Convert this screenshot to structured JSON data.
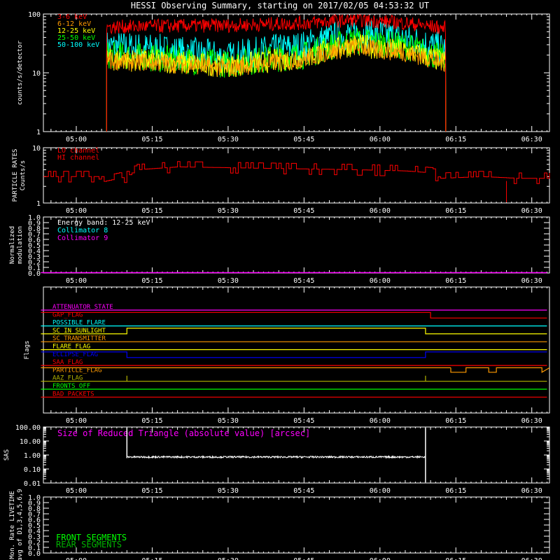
{
  "title": "HESSI Observing Summary, starting on 2017/02/05 04:53:32 UT",
  "colors": {
    "background": "#000000",
    "axes": "#ffffff",
    "red": "#ff0000",
    "orange": "#ff9900",
    "yellow": "#ffff00",
    "green": "#00ff00",
    "cyan": "#00ffff",
    "magenta": "#ff00ff",
    "blue": "#0000ff",
    "olive": "#b3b300",
    "darkgreen": "#00b400",
    "white": "#ffffff"
  },
  "time_axis": {
    "ticks": [
      "05:00",
      "05:15",
      "05:30",
      "05:45",
      "06:00",
      "06:15",
      "06:30"
    ]
  },
  "chart_data": [
    {
      "id": "lightcurve",
      "type": "line",
      "ylabel": "counts/s/detector",
      "yscale": "log",
      "ylim": [
        1,
        100
      ],
      "ytick_labels": [
        "1",
        "10",
        "100"
      ],
      "data_window": [
        "05:06",
        "06:13"
      ],
      "series": [
        {
          "name": "3-6 keV",
          "color": "#ff0000",
          "x": [
            "05:06",
            "05:15",
            "05:30",
            "05:45",
            "05:55",
            "06:00",
            "06:05",
            "06:12"
          ],
          "y": [
            60,
            62,
            64,
            70,
            80,
            75,
            70,
            58
          ]
        },
        {
          "name": "6-12 keV",
          "color": "#ff9900",
          "x": [
            "05:06",
            "05:15",
            "05:30",
            "05:45",
            "05:55",
            "06:00",
            "06:05",
            "06:12"
          ],
          "y": [
            16,
            15,
            12,
            17,
            28,
            24,
            22,
            15
          ]
        },
        {
          "name": "12-25 keV",
          "color": "#ffff00",
          "x": [
            "05:06",
            "05:15",
            "05:30",
            "05:45",
            "05:55",
            "06:00",
            "06:05",
            "06:12"
          ],
          "y": [
            17,
            16,
            13,
            18,
            30,
            26,
            23,
            16
          ]
        },
        {
          "name": "25-50 keV",
          "color": "#00ff00",
          "x": [
            "05:06",
            "05:15",
            "05:30",
            "05:45",
            "05:55",
            "06:00",
            "06:05",
            "06:12"
          ],
          "y": [
            20,
            18,
            14,
            20,
            35,
            32,
            28,
            18
          ]
        },
        {
          "name": "50-100 keV",
          "color": "#00ffff",
          "x": [
            "05:06",
            "05:15",
            "05:30",
            "05:45",
            "05:55",
            "06:00",
            "06:05",
            "06:12"
          ],
          "y": [
            28,
            25,
            18,
            28,
            48,
            44,
            38,
            26
          ]
        }
      ]
    },
    {
      "id": "particle",
      "type": "line",
      "ylabel_lines": [
        "PARTICLE RATES",
        "Counts/s"
      ],
      "yscale": "log",
      "ylim": [
        1,
        10
      ],
      "ytick_labels": [
        "1",
        "10"
      ],
      "series": [
        {
          "name": "LO channel",
          "color": "#ff0000",
          "x": [
            "04:53",
            "05:04",
            "05:05",
            "05:10",
            "05:12",
            "05:20",
            "05:40",
            "05:55",
            "06:05",
            "06:10",
            "06:12",
            "06:20",
            "06:27",
            "06:33"
          ],
          "y": [
            3.0,
            3.0,
            2.4,
            3.0,
            4.0,
            4.5,
            4.2,
            4.0,
            3.8,
            3.5,
            2.8,
            3.0,
            2.8,
            2.8
          ]
        },
        {
          "name": "HI channel",
          "color": "#ff0000",
          "x": [],
          "y": []
        }
      ]
    },
    {
      "id": "modulation",
      "type": "line",
      "ylabel_lines": [
        "Normalized",
        "modulation"
      ],
      "ylim": [
        0,
        1
      ],
      "ytick_labels": [
        "0.0",
        "0.1",
        "0.2",
        "0.3",
        "0.4",
        "0.5",
        "0.6",
        "0.7",
        "0.8",
        "0.9",
        "1.0"
      ],
      "annotation": "Energy band: 12-25 keV",
      "series": [
        {
          "name": "Collimator 8",
          "color": "#00ffff",
          "x": [],
          "y": []
        },
        {
          "name": "Collimator 9",
          "color": "#ff00ff",
          "x": [
            "04:53",
            "06:33"
          ],
          "y": [
            0.0,
            0.0
          ]
        }
      ]
    },
    {
      "id": "flags",
      "type": "line",
      "ylabel": "Flags",
      "series": [
        {
          "name": "ATTENUATOR_STATE",
          "color": "#ff00ff",
          "x": [
            "04:53",
            "06:33"
          ],
          "y": [
            0,
            0
          ]
        },
        {
          "name": "GAP_FLAG",
          "color": "#ff0000",
          "x": [
            "04:53",
            "06:10",
            "06:10",
            "06:33"
          ],
          "y": [
            1,
            1,
            0,
            0
          ]
        },
        {
          "name": "POSSIBLE_FLARE",
          "color": "#00ffff",
          "x": [
            "04:53",
            "06:33"
          ],
          "y": [
            0,
            0
          ]
        },
        {
          "name": "SC_IN_SUNLIGHT",
          "color": "#ffff00",
          "x": [
            "04:53",
            "05:10",
            "05:10",
            "06:09",
            "06:09",
            "06:33"
          ],
          "y": [
            0,
            0,
            1,
            1,
            0,
            0
          ]
        },
        {
          "name": "SC_TRANSMITTER",
          "color": "#ff9900",
          "x": [
            "04:53",
            "06:33"
          ],
          "y": [
            0,
            0
          ]
        },
        {
          "name": "FLARE_FLAG",
          "color": "#ffff00",
          "x": [
            "04:53",
            "06:33"
          ],
          "y": [
            0,
            0
          ]
        },
        {
          "name": "ECLIPSE_FLAG",
          "color": "#0000ff",
          "x": [
            "04:53",
            "05:10",
            "05:10",
            "06:09",
            "06:09",
            "06:33"
          ],
          "y": [
            1,
            1,
            0,
            0,
            1,
            1
          ]
        },
        {
          "name": "SAA_FLAG",
          "color": "#ff0000",
          "x": [
            "04:53",
            "06:33"
          ],
          "y": [
            0,
            0
          ]
        },
        {
          "name": "PARTICLE_FLAG",
          "color": "#ff9900",
          "x": [
            "04:53",
            "06:14",
            "06:14",
            "06:33"
          ],
          "y": [
            1,
            1,
            0.6,
            0.6
          ]
        },
        {
          "name": "AAZ_FLAG",
          "color": "#b3b300",
          "x": [
            "04:53",
            "05:10",
            "05:10",
            "05:10",
            "06:09",
            "06:09",
            "06:09",
            "06:33"
          ],
          "y": [
            0,
            0,
            1,
            0,
            0,
            1,
            0,
            0
          ]
        },
        {
          "name": "FRONTS_OFF",
          "color": "#00ff00",
          "x": [
            "04:53",
            "06:33"
          ],
          "y": [
            0,
            0
          ]
        },
        {
          "name": "BAD_PACKETS",
          "color": "#ff0000",
          "x": [
            "04:53",
            "06:33"
          ],
          "y": [
            0,
            0
          ]
        }
      ]
    },
    {
      "id": "sas",
      "type": "line",
      "ylabel": "SAS",
      "yscale": "log",
      "ylim": [
        0.01,
        100
      ],
      "ytick_labels": [
        "0.01",
        "0.10",
        "1.00",
        "10.00",
        "100.00"
      ],
      "annotation": "Size of Reduced Triangle (absolute value) [arcsec]",
      "series": [
        {
          "name": "",
          "color": "#ffffff",
          "x": [
            "05:10",
            "05:10",
            "05:12",
            "05:30",
            "05:45",
            "06:00",
            "06:08",
            "06:09",
            "06:09"
          ],
          "y": [
            100,
            0.6,
            0.7,
            0.72,
            0.72,
            0.74,
            0.78,
            100,
            0.02
          ]
        }
      ]
    },
    {
      "id": "livetime",
      "type": "line",
      "ylabel_lines": [
        "Mon. Rate LIVETIME",
        "avg of D1,3,4,5,6,9"
      ],
      "ylim": [
        0,
        1
      ],
      "ytick_labels": [
        "0.0",
        "0.1",
        "0.2",
        "0.3",
        "0.4",
        "0.5",
        "0.6",
        "0.7",
        "0.8",
        "0.9",
        "1.0"
      ],
      "series": [
        {
          "name": "FRONT SEGMENTS",
          "color": "#00ff00",
          "x": [],
          "y": []
        },
        {
          "name": "REAR SEGMENTS",
          "color": "#00b400",
          "x": [],
          "y": []
        }
      ]
    }
  ]
}
